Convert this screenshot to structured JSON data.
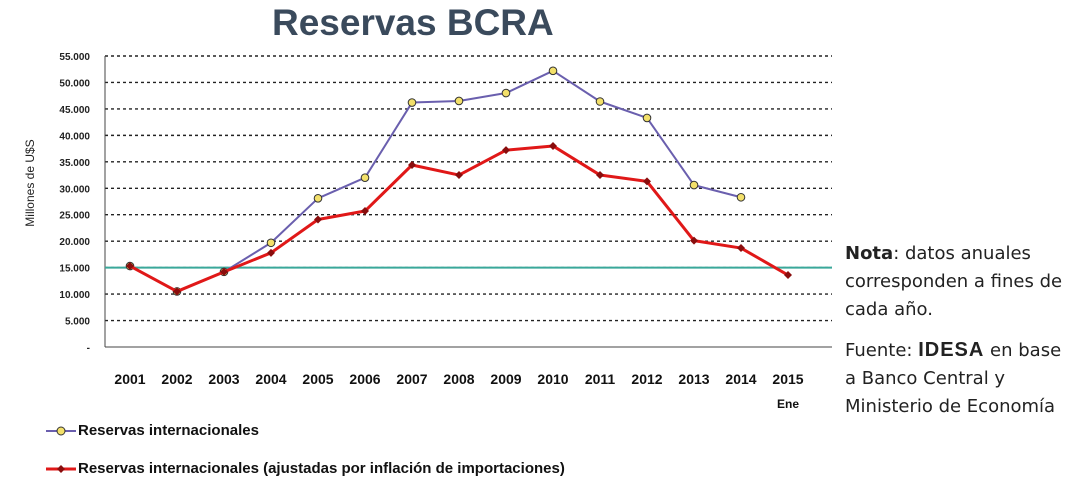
{
  "title": "Reservas BCRA",
  "notes": {
    "note_label": "Nota",
    "note_text": ": datos anuales corresponden a fines de cada año.",
    "source_label": "Fuente: ",
    "source_org": "IDESA",
    "source_text": " en base a Banco Central y Ministerio de Economía"
  },
  "colors": {
    "series1": "#6a5fae",
    "series2": "#e01818",
    "refline": "#3aa89a",
    "marker1_fill": "#f3e06a"
  },
  "chart_data": {
    "type": "line",
    "title": "Reservas BCRA",
    "ylabel": "Millones de U$S",
    "xlabel": "",
    "ylim": [
      0,
      55000
    ],
    "yticks": [
      "-",
      "5.000",
      "10.000",
      "15.000",
      "20.000",
      "25.000",
      "30.000",
      "35.000",
      "40.000",
      "45.000",
      "50.000",
      "55.000"
    ],
    "categories": [
      "2001",
      "2002",
      "2003",
      "2004",
      "2005",
      "2006",
      "2007",
      "2008",
      "2009",
      "2010",
      "2011",
      "2012",
      "2013",
      "2014",
      "2015"
    ],
    "category_sublabels": {
      "2015": "Ene"
    },
    "grid": "horizontal dotted",
    "reference_line": 15000,
    "series": [
      {
        "name": "Reservas internacionales",
        "values": [
          15300,
          10500,
          14200,
          19700,
          28100,
          32000,
          46200,
          46500,
          48000,
          52200,
          46400,
          43300,
          30600,
          28300,
          null
        ]
      },
      {
        "name": "Reservas internacionales (ajustadas por inflación de importaciones)",
        "values": [
          15300,
          10500,
          14200,
          17800,
          24100,
          25700,
          34400,
          32500,
          37200,
          38000,
          32500,
          31300,
          20100,
          18700,
          13600
        ]
      }
    ]
  }
}
